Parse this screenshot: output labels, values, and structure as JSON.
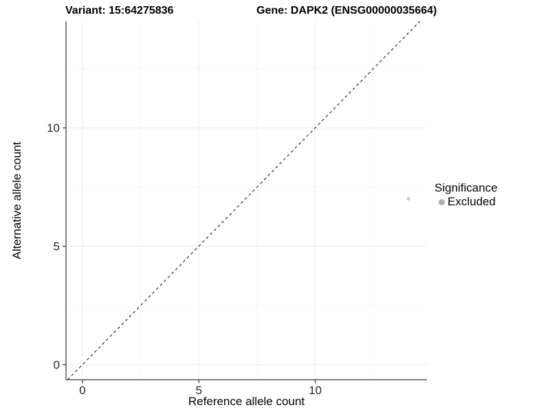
{
  "chart_data": {
    "type": "scatter",
    "titles": {
      "left": "Variant: 15:64275836",
      "right": "Gene: DAPK2 (ENSG00000035664)"
    },
    "xlabel": "Reference allele count",
    "ylabel": "Alternative allele count",
    "xlim": [
      -0.71,
      14.8
    ],
    "ylim": [
      -0.64,
      14.5
    ],
    "x_ticks": [
      0,
      5,
      10
    ],
    "y_ticks": [
      0,
      5,
      10
    ],
    "minor_ticks_x": [
      2.5,
      7.5,
      12.5
    ],
    "minor_ticks_y": [
      2.5,
      7.5,
      12.5
    ],
    "grid": "major+minor",
    "series": [
      {
        "name": "Excluded",
        "marker": "circle",
        "size": 2.5,
        "color": "#c9c9c9",
        "points": [
          {
            "x": 14,
            "y": 7
          }
        ]
      }
    ],
    "reference_line": {
      "type": "identity",
      "equation": "y = x",
      "style": "dashed",
      "color": "#000000"
    },
    "legend": {
      "title": "Significance",
      "position": "right",
      "entries": [
        {
          "label": "Excluded",
          "swatch_color": "#b0b0b0"
        }
      ]
    },
    "colors": {
      "background": "#ffffff",
      "axis_line": "#333333",
      "tick_mark": "#333333",
      "tick_label": "#262626",
      "grid_major": "#ebebeb",
      "grid_minor": "#f6f6f6"
    }
  }
}
